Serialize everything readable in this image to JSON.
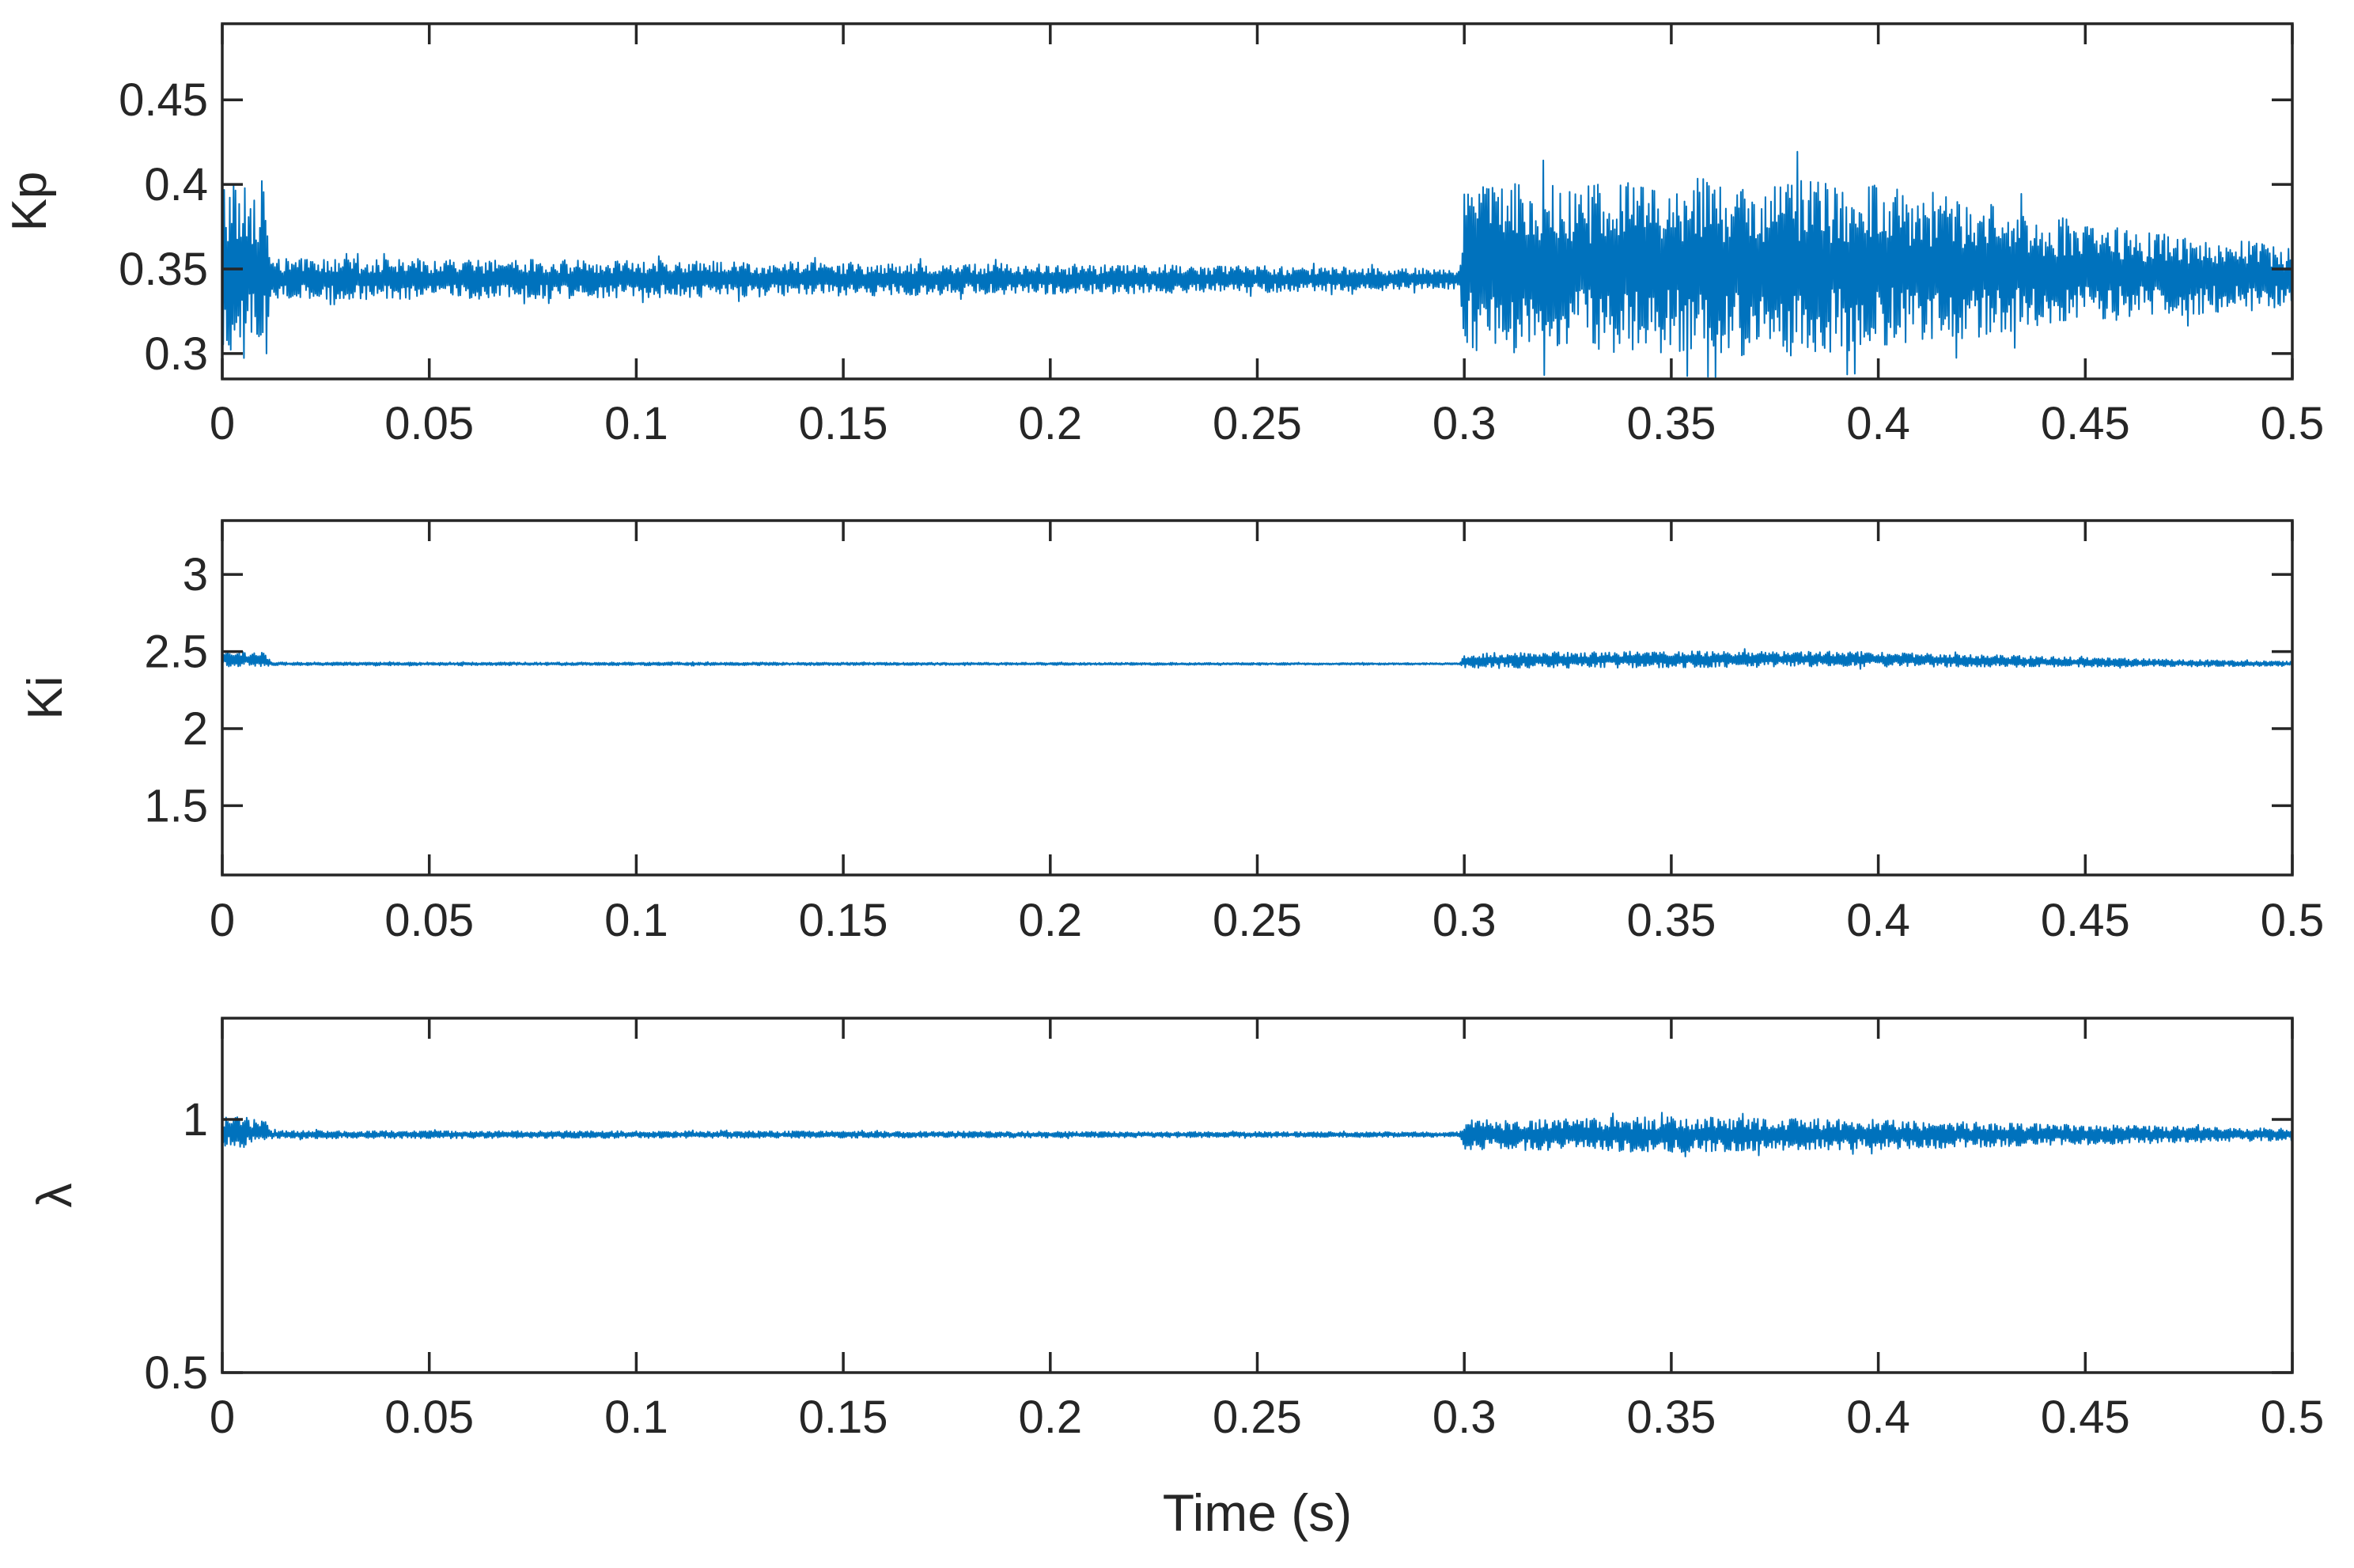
{
  "chart_data": [
    {
      "type": "line",
      "ylabel": "Kp",
      "xlabel": "",
      "xlim": [
        0,
        0.5
      ],
      "ylim": [
        0.285,
        0.495
      ],
      "xticks": [
        "0",
        "0.05",
        "0.1",
        "0.15",
        "0.2",
        "0.25",
        "0.3",
        "0.35",
        "0.4",
        "0.45",
        "0.5"
      ],
      "yticks": [
        "0.3",
        "0.35",
        "0.4",
        "0.45"
      ],
      "grid": false,
      "color": "#0072BD",
      "series": [
        {
          "x": [
            0,
            0.01,
            0.012,
            0.05,
            0.1,
            0.15,
            0.2,
            0.25,
            0.299,
            0.3,
            0.35,
            0.38,
            0.4,
            0.45,
            0.5
          ],
          "center": [
            0.35,
            0.35,
            0.344,
            0.344,
            0.344,
            0.344,
            0.344,
            0.344,
            0.344,
            0.35,
            0.352,
            0.352,
            0.352,
            0.348,
            0.345
          ],
          "amplitude": [
            0.055,
            0.052,
            0.012,
            0.012,
            0.011,
            0.01,
            0.009,
            0.008,
            0.006,
            0.05,
            0.052,
            0.054,
            0.05,
            0.03,
            0.018
          ]
        }
      ]
    },
    {
      "type": "line",
      "ylabel": "Ki",
      "xlabel": "",
      "xlim": [
        0,
        0.5
      ],
      "ylim": [
        1.05,
        3.35
      ],
      "xticks": [
        "0",
        "0.05",
        "0.1",
        "0.15",
        "0.2",
        "0.25",
        "0.3",
        "0.35",
        "0.4",
        "0.45",
        "0.5"
      ],
      "yticks": [
        "1.5",
        "2",
        "2.5",
        "3"
      ],
      "grid": false,
      "color": "#0072BD",
      "series": [
        {
          "x": [
            0,
            0.01,
            0.012,
            0.1,
            0.2,
            0.299,
            0.3,
            0.35,
            0.4,
            0.45,
            0.5
          ],
          "center": [
            2.45,
            2.45,
            2.42,
            2.42,
            2.42,
            2.42,
            2.44,
            2.45,
            2.45,
            2.43,
            2.42
          ],
          "amplitude": [
            0.05,
            0.05,
            0.01,
            0.01,
            0.008,
            0.006,
            0.05,
            0.055,
            0.05,
            0.03,
            0.015
          ]
        }
      ]
    },
    {
      "type": "line",
      "ylabel": "λ",
      "xlabel": "Time (s)",
      "xlim": [
        0,
        0.5
      ],
      "ylim": [
        0.5,
        1.2
      ],
      "xticks": [
        "0",
        "0.05",
        "0.1",
        "0.15",
        "0.2",
        "0.25",
        "0.3",
        "0.35",
        "0.4",
        "0.45",
        "0.5"
      ],
      "yticks": [
        "0.5",
        "1"
      ],
      "grid": false,
      "color": "#0072BD",
      "series": [
        {
          "x": [
            0,
            0.01,
            0.012,
            0.1,
            0.2,
            0.299,
            0.3,
            0.35,
            0.4,
            0.45,
            0.5
          ],
          "center": [
            0.975,
            0.975,
            0.97,
            0.97,
            0.97,
            0.97,
            0.97,
            0.97,
            0.97,
            0.97,
            0.97
          ],
          "amplitude": [
            0.03,
            0.03,
            0.008,
            0.007,
            0.006,
            0.005,
            0.03,
            0.035,
            0.03,
            0.02,
            0.012
          ]
        }
      ]
    }
  ]
}
